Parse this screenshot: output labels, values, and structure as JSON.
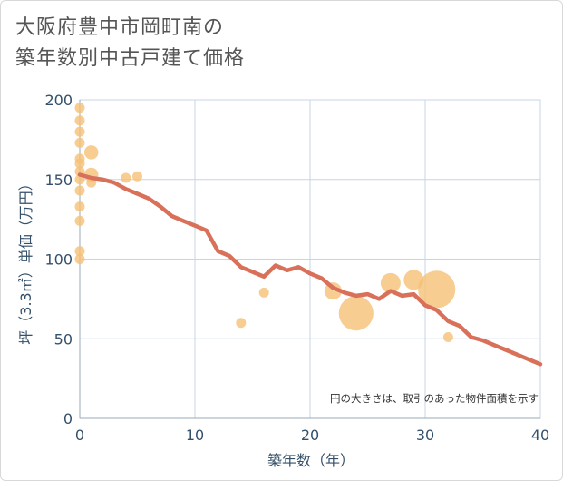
{
  "title": [
    "大阪府豊中市岡町南の",
    "築年数別中古戸建て価格"
  ],
  "chart_data": {
    "type": "scatter+line",
    "xlabel": "築年数（年）",
    "ylabel": "坪（3.3㎡）単価（万円）",
    "xlim": [
      0,
      40
    ],
    "ylim": [
      0,
      200
    ],
    "xticks": [
      0,
      10,
      20,
      30,
      40
    ],
    "yticks": [
      0,
      50,
      100,
      150,
      200
    ],
    "grid": true,
    "annotation": "円の大きさは、取引のあった物件面積を示す",
    "colors": {
      "bubble": "#f5c077",
      "line": "#d9705a",
      "grid": "#c8d4e4",
      "axis_text": "#34506b"
    },
    "bubbles": [
      {
        "x": 0,
        "y": 195,
        "size": 1
      },
      {
        "x": 0,
        "y": 187,
        "size": 1
      },
      {
        "x": 0,
        "y": 180,
        "size": 1
      },
      {
        "x": 0,
        "y": 173,
        "size": 1
      },
      {
        "x": 0,
        "y": 163,
        "size": 1
      },
      {
        "x": 0,
        "y": 160,
        "size": 1
      },
      {
        "x": 0,
        "y": 155,
        "size": 1
      },
      {
        "x": 0,
        "y": 150,
        "size": 1
      },
      {
        "x": 0,
        "y": 143,
        "size": 1
      },
      {
        "x": 0,
        "y": 133,
        "size": 1
      },
      {
        "x": 0,
        "y": 124,
        "size": 1
      },
      {
        "x": 0,
        "y": 105,
        "size": 1
      },
      {
        "x": 0,
        "y": 100,
        "size": 1
      },
      {
        "x": 1,
        "y": 167,
        "size": 2
      },
      {
        "x": 1,
        "y": 153,
        "size": 2
      },
      {
        "x": 1,
        "y": 148,
        "size": 1
      },
      {
        "x": 4,
        "y": 151,
        "size": 1
      },
      {
        "x": 5,
        "y": 152,
        "size": 1
      },
      {
        "x": 14,
        "y": 60,
        "size": 1
      },
      {
        "x": 16,
        "y": 79,
        "size": 1
      },
      {
        "x": 22,
        "y": 80,
        "size": 3
      },
      {
        "x": 24,
        "y": 66,
        "size": 12
      },
      {
        "x": 27,
        "y": 85,
        "size": 4
      },
      {
        "x": 29,
        "y": 87,
        "size": 4
      },
      {
        "x": 31,
        "y": 81,
        "size": 14
      },
      {
        "x": 32,
        "y": 51,
        "size": 1
      }
    ],
    "trend": {
      "x": [
        0,
        1,
        2,
        3,
        4,
        5,
        6,
        7,
        8,
        9,
        10,
        11,
        12,
        13,
        14,
        15,
        16,
        17,
        18,
        19,
        20,
        21,
        22,
        23,
        24,
        25,
        26,
        27,
        28,
        29,
        30,
        31,
        32,
        33,
        34,
        35,
        36,
        37,
        38,
        39,
        40
      ],
      "y": [
        153,
        151,
        150,
        148,
        144,
        141,
        138,
        133,
        127,
        124,
        121,
        118,
        105,
        102,
        95,
        92,
        89,
        96,
        93,
        95,
        91,
        88,
        82,
        79,
        77,
        78,
        75,
        80,
        77,
        78,
        71,
        68,
        61,
        58,
        51,
        49,
        46,
        43,
        40,
        37,
        34
      ]
    }
  }
}
